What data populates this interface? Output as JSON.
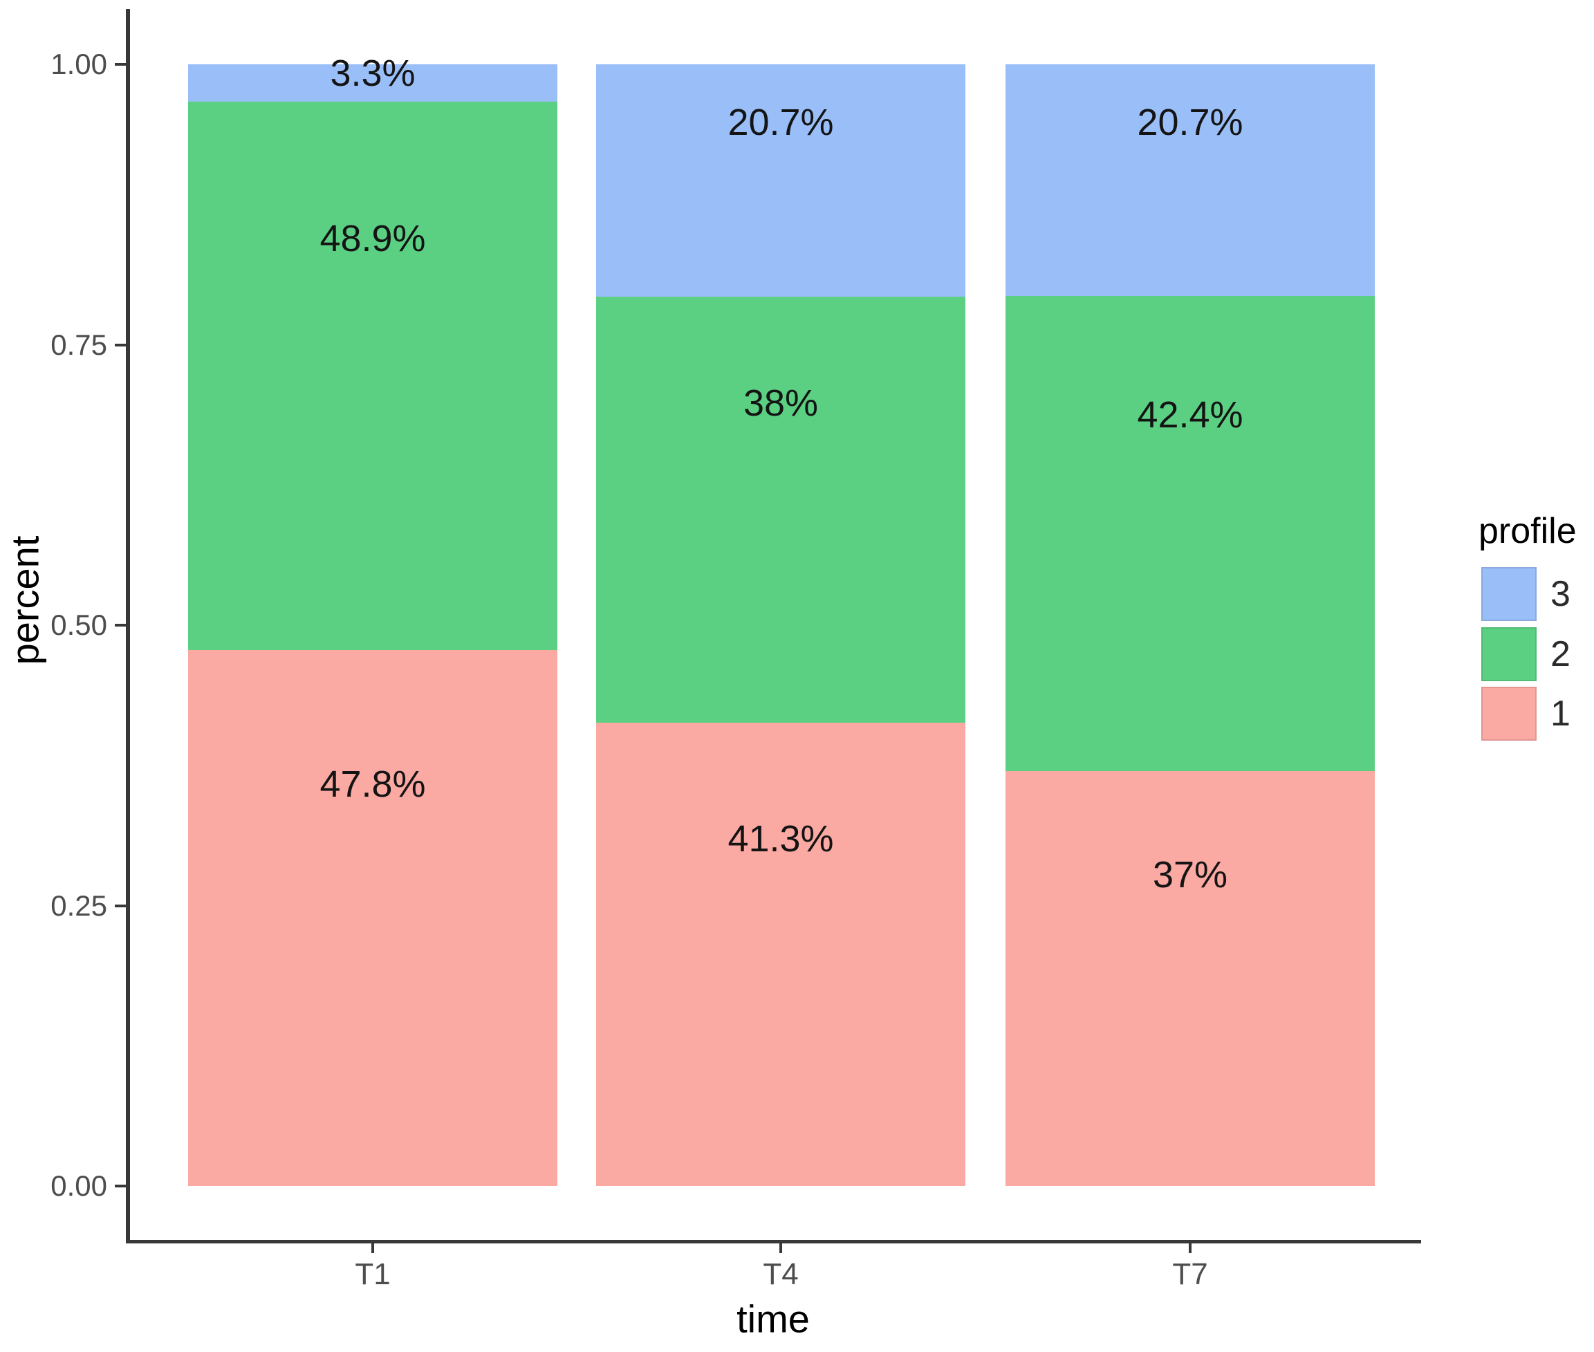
{
  "chart_data": {
    "type": "bar",
    "subtype": "stacked-percentage",
    "title": "",
    "xlabel": "time",
    "ylabel": "percent",
    "categories": [
      "T1",
      "T4",
      "T7"
    ],
    "series": [
      {
        "name": "1",
        "color": "#FAA9A3",
        "values": [
          47.8,
          41.3,
          37.0
        ],
        "labels": [
          "47.8%",
          "41.3%",
          "37%"
        ]
      },
      {
        "name": "2",
        "color": "#5CD082",
        "values": [
          48.9,
          38.0,
          42.4
        ],
        "labels": [
          "48.9%",
          "38%",
          "42.4%"
        ]
      },
      {
        "name": "3",
        "color": "#9ABEF8",
        "values": [
          3.3,
          20.7,
          20.7
        ],
        "labels": [
          "3.3%",
          "20.7%",
          "20.7%"
        ]
      }
    ],
    "y_ticks": [
      "0.00",
      "0.25",
      "0.50",
      "0.75",
      "1.00"
    ],
    "ylim": [
      0,
      1
    ],
    "grid": "off",
    "legend": {
      "title": "profile",
      "position": "right",
      "entries": [
        {
          "label": "3",
          "color": "#9ABEF8"
        },
        {
          "label": "2",
          "color": "#5CD082"
        },
        {
          "label": "1",
          "color": "#FAA9A3"
        }
      ]
    },
    "colors": {
      "axis_line": "#383838",
      "tick_text": "#4d4d4d",
      "bar_label_text": "#141414",
      "background": "#ffffff"
    }
  }
}
